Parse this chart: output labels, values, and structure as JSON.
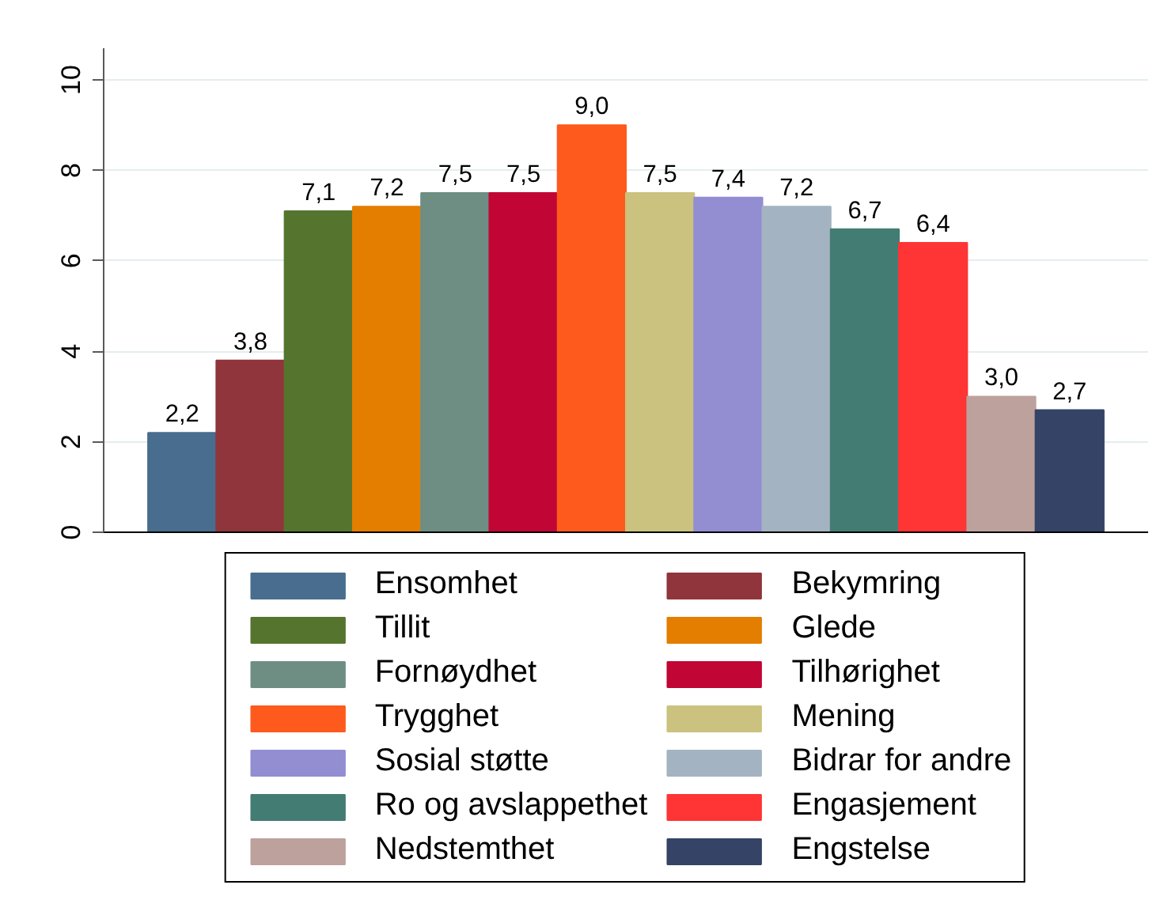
{
  "chart_data": {
    "type": "bar",
    "categories": [
      null
    ],
    "series": [
      {
        "name": "Ensomhet",
        "color": "#486d8e",
        "values": [
          2.2
        ],
        "value_labels": [
          "2,2"
        ]
      },
      {
        "name": "Bekymring",
        "color": "#90353b",
        "values": [
          3.8
        ],
        "value_labels": [
          "3,8"
        ]
      },
      {
        "name": "Tillit",
        "color": "#55752f",
        "values": [
          7.1
        ],
        "value_labels": [
          "7,1"
        ]
      },
      {
        "name": "Glede",
        "color": "#e37e00",
        "values": [
          7.2
        ],
        "value_labels": [
          "7,2"
        ]
      },
      {
        "name": "Fornøydhet",
        "color": "#6e8e84",
        "values": [
          7.5
        ],
        "value_labels": [
          "7,5"
        ]
      },
      {
        "name": "Tilhørighet",
        "color": "#c10534",
        "values": [
          7.5
        ],
        "value_labels": [
          "7,5"
        ]
      },
      {
        "name": "Trygghet",
        "color": "#fe5a1d",
        "values": [
          9.0
        ],
        "value_labels": [
          "9,0"
        ]
      },
      {
        "name": "Mening",
        "color": "#cac27e",
        "values": [
          7.5
        ],
        "value_labels": [
          "7,5"
        ]
      },
      {
        "name": "Sosial støtte",
        "color": "#938dd2",
        "values": [
          7.4
        ],
        "value_labels": [
          "7,4"
        ]
      },
      {
        "name": "Bidrar for andre",
        "color": "#a4b3c1",
        "values": [
          7.2
        ],
        "value_labels": [
          "7,2"
        ]
      },
      {
        "name": "Ro og avslappethet",
        "color": "#437c73",
        "values": [
          6.7
        ],
        "value_labels": [
          "6,7"
        ]
      },
      {
        "name": "Engasjement",
        "color": "#ff3434",
        "values": [
          6.4
        ],
        "value_labels": [
          "6,4"
        ]
      },
      {
        "name": "Nedstemthet",
        "color": "#bda19c",
        "values": [
          3.0
        ],
        "value_labels": [
          "3,0"
        ]
      },
      {
        "name": "Engstelse",
        "color": "#344366",
        "values": [
          2.7
        ],
        "value_labels": [
          "2,7"
        ]
      }
    ],
    "ylim": [
      0,
      10.7
    ],
    "yticks": [
      0,
      2,
      4,
      6,
      8,
      10
    ],
    "grid": "y",
    "legend": "bottom"
  }
}
